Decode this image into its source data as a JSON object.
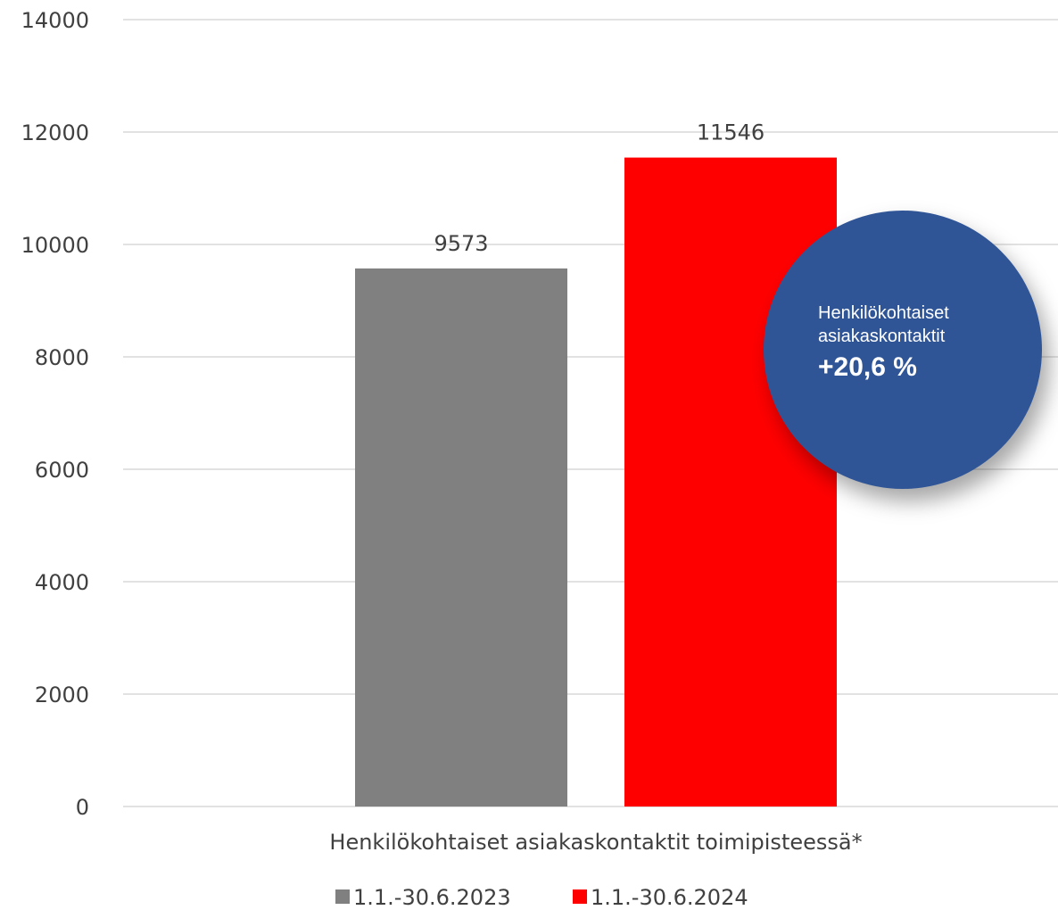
{
  "chart_data": {
    "type": "bar",
    "categories": [
      "Henkilökohtaiset asiakaskontaktit toimipisteessä*"
    ],
    "series": [
      {
        "name": "1.1.-30.6.2023",
        "values": [
          9573
        ],
        "color": "#808080"
      },
      {
        "name": "1.1.-30.6.2024",
        "values": [
          11546
        ],
        "color": "#ff0000"
      }
    ],
    "ylim": [
      0,
      14000
    ],
    "yticks": [
      0,
      2000,
      4000,
      6000,
      8000,
      10000,
      12000,
      14000
    ],
    "grid": true,
    "legend": "bottom",
    "title": "",
    "xlabel": "",
    "ylabel": ""
  },
  "callout": {
    "line1": "Henkilökohtaiset",
    "line2": "asiakaskontaktit",
    "value": "+20,6 %",
    "color": "#2f5597"
  }
}
